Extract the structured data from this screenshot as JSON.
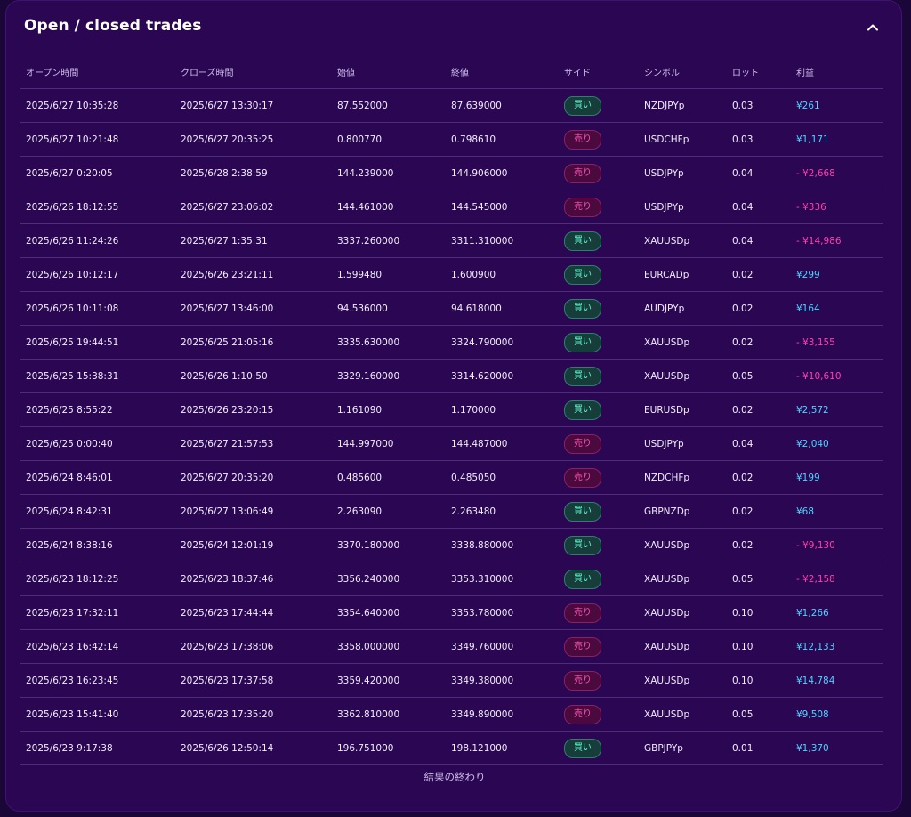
{
  "panel": {
    "title": "Open / closed trades",
    "collapse_icon": "chevron-up-icon",
    "footer": "結果の終わり"
  },
  "colors": {
    "background": "#1b0638",
    "panel": "#2a0653",
    "buy_badge_text": "#5ff0c8",
    "sell_badge_text": "#ff4fb5",
    "positive_profit": "#4fd3ff",
    "negative_profit": "#ff3fb0"
  },
  "columns": [
    "オープン時間",
    "クローズ時間",
    "始値",
    "終値",
    "サイド",
    "シンボル",
    "ロット",
    "利益"
  ],
  "rows": [
    {
      "open": "2025/6/27 10:35:28",
      "close": "2025/6/27 13:30:17",
      "open_price": "87.552000",
      "close_price": "87.639000",
      "side": "買い",
      "side_type": "buy",
      "symbol": "NZDJPYp",
      "lot": "0.03",
      "profit": "¥261",
      "profit_type": "pos"
    },
    {
      "open": "2025/6/27 10:21:48",
      "close": "2025/6/27 20:35:25",
      "open_price": "0.800770",
      "close_price": "0.798610",
      "side": "売り",
      "side_type": "sell",
      "symbol": "USDCHFp",
      "lot": "0.03",
      "profit": "¥1,171",
      "profit_type": "pos"
    },
    {
      "open": "2025/6/27 0:20:05",
      "close": "2025/6/28 2:38:59",
      "open_price": "144.239000",
      "close_price": "144.906000",
      "side": "売り",
      "side_type": "sell",
      "symbol": "USDJPYp",
      "lot": "0.04",
      "profit": "- ¥2,668",
      "profit_type": "neg"
    },
    {
      "open": "2025/6/26 18:12:55",
      "close": "2025/6/27 23:06:02",
      "open_price": "144.461000",
      "close_price": "144.545000",
      "side": "売り",
      "side_type": "sell",
      "symbol": "USDJPYp",
      "lot": "0.04",
      "profit": "- ¥336",
      "profit_type": "neg"
    },
    {
      "open": "2025/6/26 11:24:26",
      "close": "2025/6/27 1:35:31",
      "open_price": "3337.260000",
      "close_price": "3311.310000",
      "side": "買い",
      "side_type": "buy",
      "symbol": "XAUUSDp",
      "lot": "0.04",
      "profit": "- ¥14,986",
      "profit_type": "neg"
    },
    {
      "open": "2025/6/26 10:12:17",
      "close": "2025/6/26 23:21:11",
      "open_price": "1.599480",
      "close_price": "1.600900",
      "side": "買い",
      "side_type": "buy",
      "symbol": "EURCADp",
      "lot": "0.02",
      "profit": "¥299",
      "profit_type": "pos"
    },
    {
      "open": "2025/6/26 10:11:08",
      "close": "2025/6/27 13:46:00",
      "open_price": "94.536000",
      "close_price": "94.618000",
      "side": "買い",
      "side_type": "buy",
      "symbol": "AUDJPYp",
      "lot": "0.02",
      "profit": "¥164",
      "profit_type": "pos"
    },
    {
      "open": "2025/6/25 19:44:51",
      "close": "2025/6/25 21:05:16",
      "open_price": "3335.630000",
      "close_price": "3324.790000",
      "side": "買い",
      "side_type": "buy",
      "symbol": "XAUUSDp",
      "lot": "0.02",
      "profit": "- ¥3,155",
      "profit_type": "neg"
    },
    {
      "open": "2025/6/25 15:38:31",
      "close": "2025/6/26 1:10:50",
      "open_price": "3329.160000",
      "close_price": "3314.620000",
      "side": "買い",
      "side_type": "buy",
      "symbol": "XAUUSDp",
      "lot": "0.05",
      "profit": "- ¥10,610",
      "profit_type": "neg"
    },
    {
      "open": "2025/6/25 8:55:22",
      "close": "2025/6/26 23:20:15",
      "open_price": "1.161090",
      "close_price": "1.170000",
      "side": "買い",
      "side_type": "buy",
      "symbol": "EURUSDp",
      "lot": "0.02",
      "profit": "¥2,572",
      "profit_type": "pos"
    },
    {
      "open": "2025/6/25 0:00:40",
      "close": "2025/6/27 21:57:53",
      "open_price": "144.997000",
      "close_price": "144.487000",
      "side": "売り",
      "side_type": "sell",
      "symbol": "USDJPYp",
      "lot": "0.04",
      "profit": "¥2,040",
      "profit_type": "pos"
    },
    {
      "open": "2025/6/24 8:46:01",
      "close": "2025/6/27 20:35:20",
      "open_price": "0.485600",
      "close_price": "0.485050",
      "side": "売り",
      "side_type": "sell",
      "symbol": "NZDCHFp",
      "lot": "0.02",
      "profit": "¥199",
      "profit_type": "pos"
    },
    {
      "open": "2025/6/24 8:42:31",
      "close": "2025/6/27 13:06:49",
      "open_price": "2.263090",
      "close_price": "2.263480",
      "side": "買い",
      "side_type": "buy",
      "symbol": "GBPNZDp",
      "lot": "0.02",
      "profit": "¥68",
      "profit_type": "pos"
    },
    {
      "open": "2025/6/24 8:38:16",
      "close": "2025/6/24 12:01:19",
      "open_price": "3370.180000",
      "close_price": "3338.880000",
      "side": "買い",
      "side_type": "buy",
      "symbol": "XAUUSDp",
      "lot": "0.02",
      "profit": "- ¥9,130",
      "profit_type": "neg"
    },
    {
      "open": "2025/6/23 18:12:25",
      "close": "2025/6/23 18:37:46",
      "open_price": "3356.240000",
      "close_price": "3353.310000",
      "side": "買い",
      "side_type": "buy",
      "symbol": "XAUUSDp",
      "lot": "0.05",
      "profit": "- ¥2,158",
      "profit_type": "neg"
    },
    {
      "open": "2025/6/23 17:32:11",
      "close": "2025/6/23 17:44:44",
      "open_price": "3354.640000",
      "close_price": "3353.780000",
      "side": "売り",
      "side_type": "sell",
      "symbol": "XAUUSDp",
      "lot": "0.10",
      "profit": "¥1,266",
      "profit_type": "pos"
    },
    {
      "open": "2025/6/23 16:42:14",
      "close": "2025/6/23 17:38:06",
      "open_price": "3358.000000",
      "close_price": "3349.760000",
      "side": "売り",
      "side_type": "sell",
      "symbol": "XAUUSDp",
      "lot": "0.10",
      "profit": "¥12,133",
      "profit_type": "pos"
    },
    {
      "open": "2025/6/23 16:23:45",
      "close": "2025/6/23 17:37:58",
      "open_price": "3359.420000",
      "close_price": "3349.380000",
      "side": "売り",
      "side_type": "sell",
      "symbol": "XAUUSDp",
      "lot": "0.10",
      "profit": "¥14,784",
      "profit_type": "pos"
    },
    {
      "open": "2025/6/23 15:41:40",
      "close": "2025/6/23 17:35:20",
      "open_price": "3362.810000",
      "close_price": "3349.890000",
      "side": "売り",
      "side_type": "sell",
      "symbol": "XAUUSDp",
      "lot": "0.05",
      "profit": "¥9,508",
      "profit_type": "pos"
    },
    {
      "open": "2025/6/23 9:17:38",
      "close": "2025/6/26 12:50:14",
      "open_price": "196.751000",
      "close_price": "198.121000",
      "side": "買い",
      "side_type": "buy",
      "symbol": "GBPJPYp",
      "lot": "0.01",
      "profit": "¥1,370",
      "profit_type": "pos"
    }
  ]
}
